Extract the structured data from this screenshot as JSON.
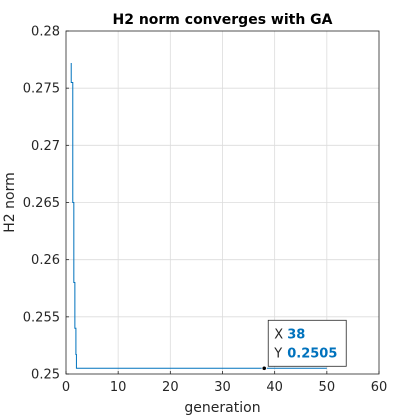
{
  "chart_data": {
    "type": "line",
    "title": "H2 norm converges with GA",
    "xlabel": "generation",
    "ylabel": "H2 norm",
    "xlim": [
      0,
      60
    ],
    "ylim": [
      0.25,
      0.28
    ],
    "xticks": [
      0,
      10,
      20,
      30,
      40,
      50,
      60
    ],
    "xtick_labels": [
      "0",
      "10",
      "20",
      "30",
      "40",
      "50",
      "60"
    ],
    "yticks": [
      0.25,
      0.255,
      0.26,
      0.265,
      0.27,
      0.275,
      0.28
    ],
    "ytick_labels": [
      "0.25",
      "0.255",
      "0.26",
      "0.265",
      "0.27",
      "0.275",
      "0.28"
    ],
    "grid": true,
    "line_color": "#0072BD",
    "series": [
      {
        "x": [
          1,
          1,
          1.3,
          1.3,
          1.5,
          1.5,
          1.7,
          1.7,
          1.9,
          1.9,
          2,
          2,
          50
        ],
        "values": [
          0.2772,
          0.2755,
          0.2755,
          0.265,
          0.265,
          0.258,
          0.258,
          0.254,
          0.254,
          0.2517,
          0.2517,
          0.2505,
          0.2505
        ]
      }
    ],
    "datatip": {
      "x_key": "X",
      "x_value": "38",
      "y_key": "Y",
      "y_value": "0.2505",
      "x": 38,
      "y": 0.2505
    }
  }
}
